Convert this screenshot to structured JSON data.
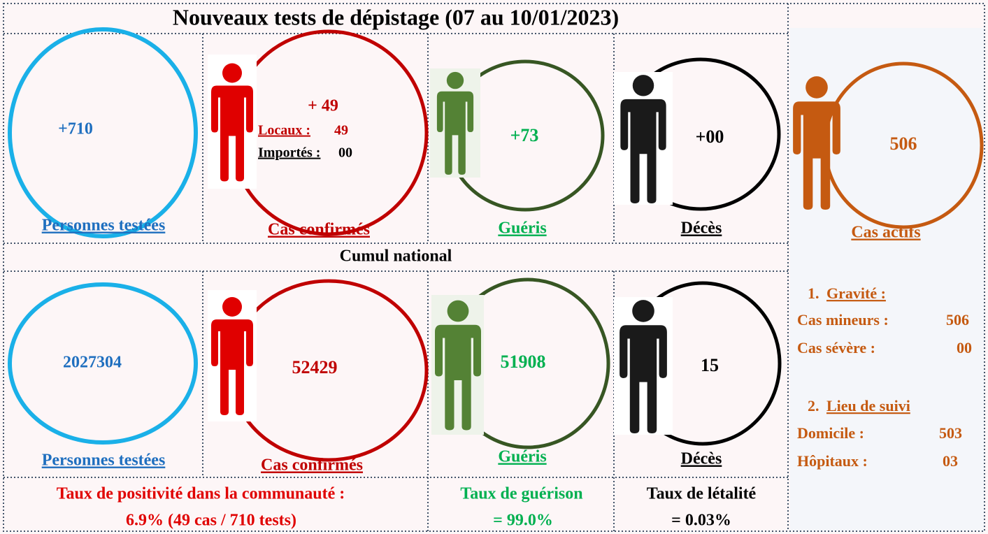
{
  "header": {
    "title": "Nouveaux tests de dépistage (07 au 10/01/2023)"
  },
  "new": {
    "tested": {
      "value": "+710",
      "label": "Personnes testées"
    },
    "confirmed": {
      "value": "+ 49",
      "local_label": "Locaux :",
      "local_value": "49",
      "imported_label": "Importés :",
      "imported_value": "00",
      "label": "Cas confirmés"
    },
    "recovered": {
      "value": "+73",
      "label": "Guéris"
    },
    "deaths": {
      "value": "+00",
      "label": "Décès"
    }
  },
  "active": {
    "value": 506,
    "label": "Cas actifs",
    "severity": {
      "number": "1.",
      "title": "Gravité :",
      "minor_label": "Cas mineurs :",
      "minor_value": 506,
      "severe_label": "Cas sévère :",
      "severe_value": "00"
    },
    "location": {
      "number": "2.",
      "title": "Lieu de suivi",
      "home_label": "Domicile :",
      "home_value": 503,
      "hospital_label": "Hôpitaux :",
      "hospital_value": "03"
    }
  },
  "cumul": {
    "title": "Cumul national",
    "tested": {
      "value": 2027304,
      "label": "Personnes testées"
    },
    "confirmed": {
      "value": 52429,
      "label": "Cas confirmés"
    },
    "recovered": {
      "value": 51908,
      "label": "Guéris"
    },
    "deaths": {
      "value": 15,
      "label": "Décès"
    }
  },
  "rates": {
    "positivity": {
      "label": "Taux de positivité dans la communauté :",
      "value": "6.9% (49 cas / 710 tests)"
    },
    "recovery": {
      "label": "Taux de guérison",
      "value": "= 99.0%"
    },
    "lethality": {
      "label": "Taux de létalité",
      "value": "= 0.03%"
    }
  }
}
